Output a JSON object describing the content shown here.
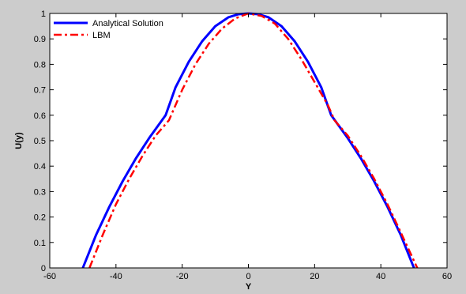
{
  "chart_data": {
    "type": "line",
    "xlabel": "Y",
    "ylabel": "U(y)",
    "xlim": [
      -60,
      60
    ],
    "ylim": [
      0,
      1
    ],
    "xticks": [
      -60,
      -40,
      -20,
      0,
      20,
      40,
      60
    ],
    "yticks": [
      0,
      0.1,
      0.2,
      0.3,
      0.4,
      0.5,
      0.6,
      0.7,
      0.8,
      0.9,
      1
    ],
    "grid": false,
    "legend_position": "top-left",
    "series": [
      {
        "name": "Analytical Solution",
        "color": "#0000ff",
        "style": "solid",
        "x": [
          -50,
          -46,
          -42,
          -38,
          -34,
          -30,
          -25,
          -22,
          -18,
          -14,
          -10,
          -6,
          -3,
          0,
          3,
          6,
          10,
          14,
          18,
          22,
          25,
          30,
          34,
          38,
          42,
          46,
          50
        ],
        "y": [
          0,
          0.13,
          0.24,
          0.34,
          0.43,
          0.51,
          0.6,
          0.71,
          0.81,
          0.89,
          0.95,
          0.985,
          0.997,
          1,
          0.997,
          0.985,
          0.95,
          0.89,
          0.81,
          0.71,
          0.6,
          0.51,
          0.43,
          0.34,
          0.24,
          0.13,
          0
        ]
      },
      {
        "name": "LBM",
        "color": "#ff0000",
        "style": "dash-dot",
        "x": [
          -48,
          -44,
          -40,
          -36,
          -32,
          -28,
          -24,
          -20,
          -16,
          -12,
          -8,
          -4,
          0,
          4,
          8,
          12,
          16,
          20,
          24,
          26,
          30,
          34,
          38,
          42,
          46,
          51
        ],
        "y": [
          0,
          0.13,
          0.25,
          0.35,
          0.44,
          0.52,
          0.58,
          0.7,
          0.8,
          0.88,
          0.94,
          0.98,
          1,
          0.99,
          0.96,
          0.9,
          0.82,
          0.73,
          0.64,
          0.58,
          0.52,
          0.44,
          0.35,
          0.25,
          0.14,
          0
        ]
      }
    ]
  }
}
